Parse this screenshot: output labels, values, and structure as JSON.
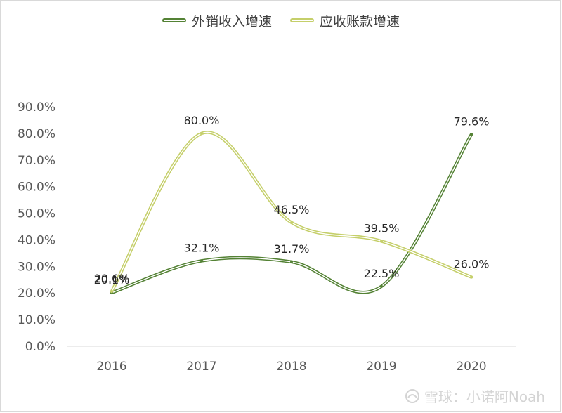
{
  "chart_data": {
    "type": "line",
    "title": "",
    "xlabel": "",
    "ylabel": "",
    "categories": [
      "2016",
      "2017",
      "2018",
      "2019",
      "2020"
    ],
    "ylim": [
      0,
      90
    ],
    "yticks": [
      0,
      10,
      20,
      30,
      40,
      50,
      60,
      70,
      80,
      90
    ],
    "ytick_labels": [
      "0.0%",
      "10.0%",
      "20.0%",
      "30.0%",
      "40.0%",
      "50.0%",
      "60.0%",
      "70.0%",
      "80.0%",
      "90.0%"
    ],
    "grid": false,
    "legend_position": "top-center",
    "series": [
      {
        "name": "外销收入增速",
        "color": "#548235",
        "values": [
          20.1,
          32.1,
          31.7,
          22.5,
          79.6
        ],
        "labels": [
          "20.1%",
          "32.1%",
          "31.7%",
          "22.5%",
          "79.6%"
        ]
      },
      {
        "name": "应收账款增速",
        "color": "#c5cf6a",
        "values": [
          20.6,
          80.0,
          46.5,
          39.5,
          26.0
        ],
        "labels": [
          "20.6%",
          "80.0%",
          "46.5%",
          "39.5%",
          "26.0%"
        ]
      }
    ]
  },
  "watermark": {
    "text": "雪球：小诺阿Noah"
  }
}
